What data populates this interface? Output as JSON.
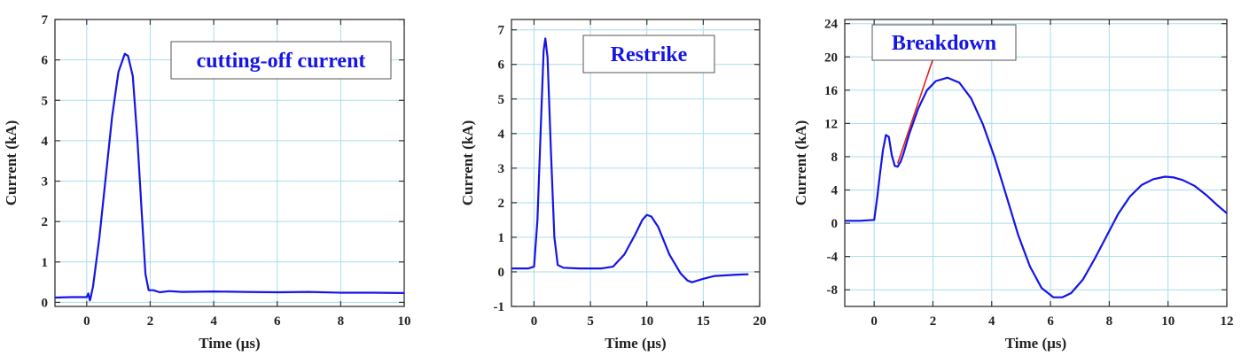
{
  "colors": {
    "line": "#1515e6",
    "grid": "#a9dcef",
    "axis": "#333333",
    "annotation_text": "#1515e6",
    "arrow": "#e0211a",
    "box_border": "#555555"
  },
  "chart_data": [
    {
      "type": "line",
      "xlabel": "Time (µs)",
      "ylabel": "Current (kA)",
      "xlim": [
        -1,
        10
      ],
      "ylim": [
        -0.1,
        7
      ],
      "xticks": [
        0,
        2,
        4,
        6,
        8,
        10
      ],
      "yticks": [
        0,
        1,
        2,
        3,
        4,
        5,
        6,
        7
      ],
      "xtick_labels": [
        "0",
        "2",
        "4",
        "6",
        "8",
        "10"
      ],
      "ytick_labels": [
        "0",
        "1",
        "2",
        "3",
        "4",
        "5",
        "6",
        "7"
      ],
      "grid": true,
      "annotation": {
        "text": "cutting-off current",
        "position": "top-right"
      },
      "series": [
        {
          "x": [
            -1,
            -0.5,
            0,
            0.05,
            0.1,
            0.12,
            0.2,
            0.4,
            0.6,
            0.8,
            1.0,
            1.2,
            1.3,
            1.45,
            1.6,
            1.75,
            1.85,
            1.95,
            2.1,
            2.3,
            2.6,
            3,
            4,
            5,
            6,
            7,
            8,
            9,
            10
          ],
          "y": [
            0.12,
            0.13,
            0.13,
            0.22,
            0.05,
            0.1,
            0.4,
            1.6,
            3.1,
            4.6,
            5.7,
            6.15,
            6.1,
            5.6,
            4.0,
            2.0,
            0.7,
            0.3,
            0.3,
            0.25,
            0.28,
            0.26,
            0.27,
            0.26,
            0.25,
            0.26,
            0.24,
            0.24,
            0.23
          ]
        }
      ]
    },
    {
      "type": "line",
      "xlabel": "Time (µs)",
      "ylabel": "Current (kA)",
      "xlim": [
        -2,
        20
      ],
      "ylim": [
        -1,
        7.3
      ],
      "xticks": [
        0,
        5,
        10,
        15,
        20
      ],
      "yticks": [
        -1,
        0,
        1,
        2,
        3,
        4,
        5,
        6,
        7
      ],
      "xtick_labels": [
        "0",
        "5",
        "10",
        "15",
        "20"
      ],
      "ytick_labels": [
        "-1",
        "0",
        "1",
        "2",
        "3",
        "4",
        "5",
        "6",
        "7"
      ],
      "grid": true,
      "annotation": {
        "text": "Restrike",
        "position": "top-right"
      },
      "series": [
        {
          "x": [
            -2,
            -0.5,
            0,
            0.3,
            0.6,
            0.85,
            1.0,
            1.2,
            1.5,
            1.8,
            2.1,
            2.6,
            4,
            6,
            7,
            8,
            9,
            9.6,
            10,
            10.4,
            11,
            12,
            13,
            13.6,
            14,
            15,
            16,
            17,
            18,
            19
          ],
          "y": [
            0.1,
            0.1,
            0.15,
            1.5,
            4.2,
            6.4,
            6.75,
            6.2,
            3.5,
            1.0,
            0.2,
            0.12,
            0.1,
            0.1,
            0.15,
            0.5,
            1.1,
            1.5,
            1.65,
            1.6,
            1.3,
            0.5,
            -0.05,
            -0.25,
            -0.3,
            -0.2,
            -0.12,
            -0.1,
            -0.08,
            -0.07
          ]
        }
      ]
    },
    {
      "type": "line",
      "xlabel": "Time (µs)",
      "ylabel": "Current (kA)",
      "xlim": [
        -1,
        12
      ],
      "ylim": [
        -10,
        24.5
      ],
      "xticks": [
        0,
        2,
        4,
        6,
        8,
        10,
        12
      ],
      "yticks": [
        -8,
        -4,
        0,
        4,
        8,
        12,
        16,
        20,
        24
      ],
      "xtick_labels": [
        "0",
        "2",
        "4",
        "6",
        "8",
        "10",
        "12"
      ],
      "ytick_labels": [
        "-8",
        "-4",
        "0",
        "4",
        "8",
        "12",
        "16",
        "20",
        "24"
      ],
      "grid": true,
      "annotation": {
        "text": "Breakdown",
        "position": "top-left",
        "arrow_to": [
          0.8,
          7.2
        ]
      },
      "series": [
        {
          "x": [
            -1,
            -0.5,
            0,
            0.1,
            0.2,
            0.3,
            0.4,
            0.5,
            0.6,
            0.7,
            0.8,
            0.9,
            1.0,
            1.2,
            1.5,
            1.8,
            2.1,
            2.5,
            2.9,
            3.3,
            3.7,
            4.1,
            4.5,
            4.9,
            5.3,
            5.7,
            6.1,
            6.4,
            6.7,
            7.1,
            7.5,
            7.9,
            8.3,
            8.7,
            9.1,
            9.5,
            9.9,
            10.2,
            10.5,
            10.9,
            11.3,
            11.7,
            12
          ],
          "y": [
            0.3,
            0.3,
            0.4,
            3,
            6,
            8.8,
            10.6,
            10.4,
            8.2,
            6.9,
            6.8,
            7.4,
            8.4,
            10.8,
            13.8,
            16.0,
            17.1,
            17.5,
            16.9,
            15.0,
            11.9,
            7.9,
            3.3,
            -1.4,
            -5.2,
            -7.8,
            -8.9,
            -8.9,
            -8.4,
            -6.8,
            -4.3,
            -1.6,
            1.1,
            3.2,
            4.6,
            5.3,
            5.6,
            5.5,
            5.2,
            4.5,
            3.4,
            2.1,
            1.2
          ]
        }
      ]
    }
  ]
}
